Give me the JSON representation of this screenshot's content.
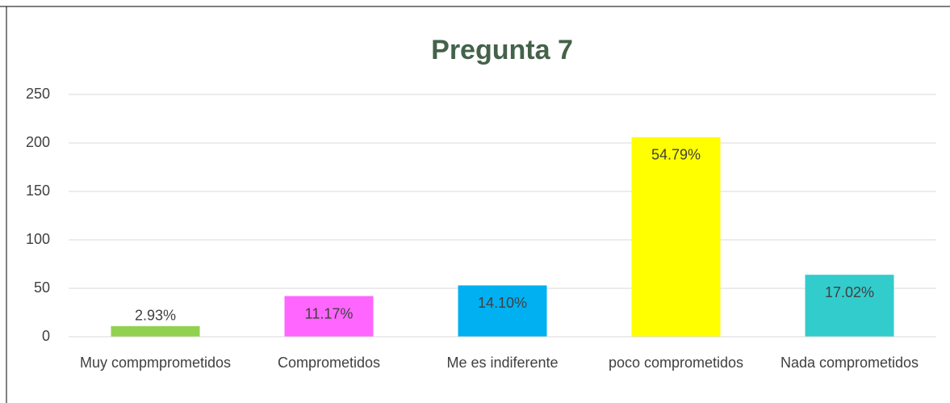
{
  "chart_data": {
    "type": "bar",
    "title": "Pregunta 7",
    "categories": [
      "Muy compmprometidos",
      "Comprometidos",
      "Me es indiferente",
      "poco comprometidos",
      "Nada comprometidos"
    ],
    "values": [
      11,
      42,
      53,
      206,
      64
    ],
    "data_labels": [
      "2.93%",
      "11.17%",
      "14.10%",
      "54.79%",
      "17.02%"
    ],
    "colors": [
      "#92d050",
      "#ff66ff",
      "#00b0f0",
      "#ffff00",
      "#33cccc"
    ],
    "ylim": [
      0,
      250
    ],
    "yticks": [
      0,
      50,
      100,
      150,
      200,
      250
    ],
    "grid": true
  }
}
